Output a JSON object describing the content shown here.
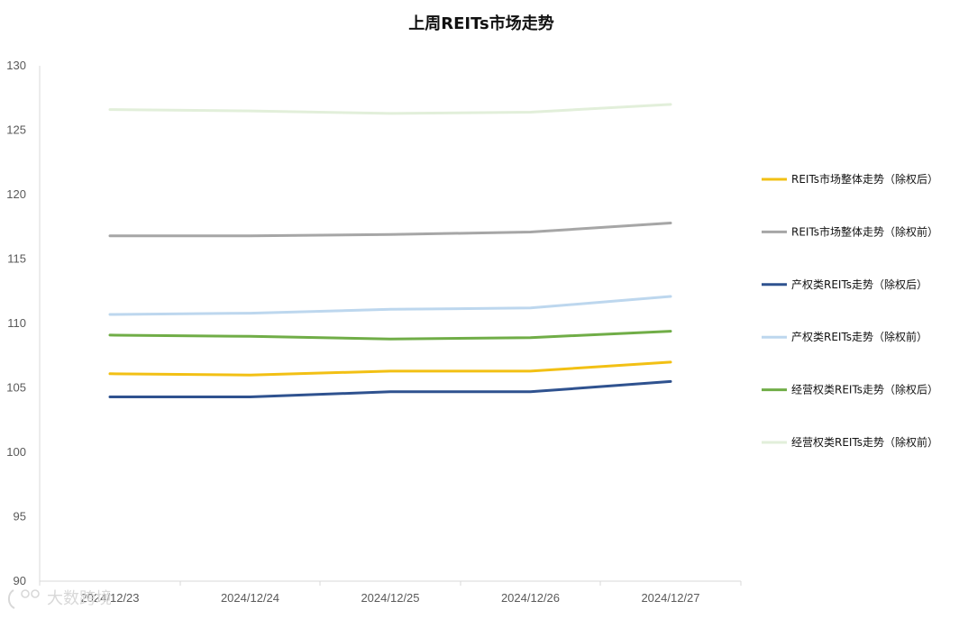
{
  "chart_data": {
    "type": "line",
    "title": "上周REITs市场走势",
    "categories": [
      "2024/12/23",
      "2024/12/24",
      "2024/12/25",
      "2024/12/26",
      "2024/12/27"
    ],
    "ylim": [
      90,
      130
    ],
    "yticks": [
      90,
      95,
      100,
      105,
      110,
      115,
      120,
      125,
      130
    ],
    "xlabel": "",
    "ylabel": "",
    "grid": false,
    "legend_position": "right",
    "series": [
      {
        "name": "REITs市场整体走势（除权后）",
        "color": "#F2C014",
        "values": [
          106.1,
          106.0,
          106.3,
          106.3,
          107.0
        ]
      },
      {
        "name": "REITs市场整体走势（除权前）",
        "color": "#A6A6A6",
        "values": [
          116.8,
          116.8,
          116.9,
          117.1,
          117.8
        ]
      },
      {
        "name": "产权类REITs走势（除权后）",
        "color": "#2F528F",
        "values": [
          104.3,
          104.3,
          104.7,
          104.7,
          105.5
        ]
      },
      {
        "name": "产权类REITs走势（除权前）",
        "color": "#BDD7EE",
        "values": [
          110.7,
          110.8,
          111.1,
          111.2,
          112.1
        ]
      },
      {
        "name": "经营权类REITs走势（除权后）",
        "color": "#70AD47",
        "values": [
          109.1,
          109.0,
          108.8,
          108.9,
          109.4
        ]
      },
      {
        "name": "经营权类REITs走势（除权前）",
        "color": "#E2EFDA",
        "values": [
          126.6,
          126.5,
          126.3,
          126.4,
          127.0
        ]
      }
    ]
  },
  "watermark": {
    "text": "大数跨境"
  }
}
